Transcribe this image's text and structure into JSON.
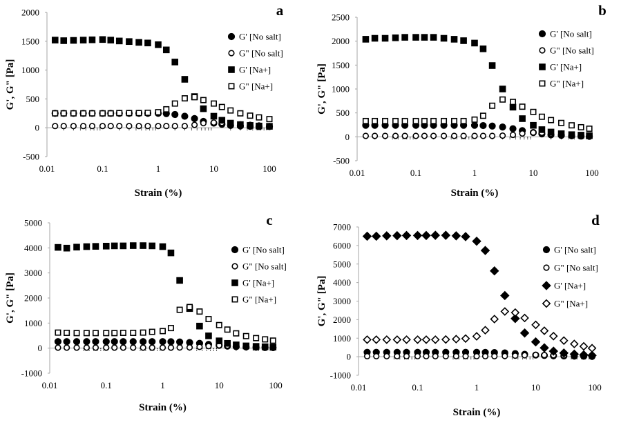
{
  "chart_data": [
    {
      "type": "scatter",
      "panel_label": "a",
      "xlabel": "Strain (%)",
      "ylabel": "G', G\" [Pa]",
      "xscale": "log",
      "xlim": [
        0.01,
        100
      ],
      "ylim": [
        -500,
        2000
      ],
      "xticks": [
        "0.01",
        "0.1",
        "1",
        "10",
        "100"
      ],
      "yticks": [
        "-500",
        "0",
        "500",
        "1000",
        "1500",
        "2000"
      ],
      "grid": false,
      "legend_position": "right",
      "x": [
        0.014,
        0.02,
        0.03,
        0.045,
        0.065,
        0.1,
        0.14,
        0.2,
        0.3,
        0.45,
        0.65,
        1.0,
        1.4,
        2.0,
        3.0,
        4.5,
        6.5,
        10,
        14,
        20,
        30,
        45,
        65,
        100
      ],
      "series": [
        {
          "name": "G' [No salt]",
          "marker": "filled-circle",
          "values": [
            250,
            250,
            250,
            250,
            250,
            250,
            250,
            250,
            250,
            250,
            250,
            250,
            245,
            230,
            200,
            160,
            110,
            80,
            60,
            40,
            30,
            25,
            20,
            20
          ]
        },
        {
          "name": "G\" [No salt]",
          "marker": "open-circle",
          "values": [
            30,
            30,
            30,
            30,
            30,
            30,
            30,
            30,
            30,
            30,
            30,
            30,
            30,
            30,
            30,
            50,
            80,
            90,
            85,
            70,
            60,
            50,
            40,
            30
          ]
        },
        {
          "name": "G' [Na+]",
          "marker": "filled-square",
          "values": [
            1520,
            1510,
            1515,
            1520,
            1525,
            1530,
            1520,
            1505,
            1495,
            1480,
            1470,
            1440,
            1350,
            1140,
            840,
            540,
            330,
            200,
            130,
            80,
            55,
            40,
            30,
            25
          ]
        },
        {
          "name": "G\" [Na+]",
          "marker": "open-square",
          "values": [
            250,
            250,
            250,
            250,
            250,
            250,
            250,
            255,
            255,
            255,
            260,
            270,
            320,
            420,
            510,
            530,
            480,
            420,
            360,
            300,
            250,
            210,
            180,
            150
          ]
        }
      ]
    },
    {
      "type": "scatter",
      "panel_label": "b",
      "xlabel": "Strain (%)",
      "ylabel": "G', G\" [Pa]",
      "xscale": "log",
      "xlim": [
        0.01,
        100
      ],
      "ylim": [
        -500,
        2500
      ],
      "xticks": [
        "0.01",
        "0.1",
        "1",
        "10",
        "100"
      ],
      "yticks": [
        "-500",
        "0",
        "500",
        "1000",
        "1500",
        "2000",
        "2500"
      ],
      "grid": false,
      "legend_position": "right",
      "x": [
        0.014,
        0.02,
        0.03,
        0.045,
        0.065,
        0.1,
        0.14,
        0.2,
        0.3,
        0.45,
        0.65,
        1.0,
        1.4,
        2.0,
        3.0,
        4.5,
        6.5,
        10,
        14,
        20,
        30,
        45,
        65,
        90
      ],
      "series": [
        {
          "name": "G' [No salt]",
          "marker": "filled-circle",
          "values": [
            240,
            240,
            240,
            240,
            240,
            240,
            240,
            240,
            240,
            240,
            240,
            240,
            235,
            225,
            205,
            170,
            130,
            90,
            60,
            40,
            30,
            20,
            15,
            10
          ]
        },
        {
          "name": "G\" [No salt]",
          "marker": "open-circle",
          "values": [
            20,
            20,
            20,
            20,
            20,
            20,
            20,
            20,
            20,
            20,
            20,
            20,
            20,
            20,
            25,
            40,
            70,
            90,
            85,
            70,
            55,
            45,
            35,
            25
          ]
        },
        {
          "name": "G' [Na+]",
          "marker": "filled-square",
          "values": [
            2040,
            2060,
            2060,
            2070,
            2080,
            2080,
            2080,
            2080,
            2060,
            2040,
            2010,
            1960,
            1840,
            1490,
            1000,
            620,
            380,
            240,
            150,
            100,
            65,
            45,
            35,
            25
          ]
        },
        {
          "name": "G\" [Na+]",
          "marker": "open-square",
          "values": [
            330,
            330,
            330,
            330,
            330,
            330,
            330,
            330,
            330,
            330,
            330,
            360,
            440,
            650,
            780,
            730,
            630,
            520,
            420,
            350,
            290,
            240,
            200,
            170
          ]
        }
      ]
    },
    {
      "type": "scatter",
      "panel_label": "c",
      "xlabel": "Strain (%)",
      "ylabel": "G', G\" [Pa]",
      "xscale": "log",
      "xlim": [
        0.01,
        100
      ],
      "ylim": [
        -1000,
        5000
      ],
      "xticks": [
        "0.01",
        "0.1",
        "1",
        "10",
        "100"
      ],
      "yticks": [
        "-1000",
        "0",
        "1000",
        "2000",
        "3000",
        "4000",
        "5000"
      ],
      "grid": false,
      "legend_position": "right",
      "x": [
        0.014,
        0.02,
        0.03,
        0.045,
        0.065,
        0.1,
        0.14,
        0.2,
        0.3,
        0.45,
        0.65,
        1.0,
        1.4,
        2.0,
        3.0,
        4.5,
        6.5,
        10,
        14,
        20,
        30,
        45,
        65,
        90
      ],
      "series": [
        {
          "name": "G' [No salt]",
          "marker": "filled-circle",
          "values": [
            260,
            260,
            260,
            260,
            260,
            260,
            260,
            260,
            260,
            260,
            260,
            260,
            255,
            245,
            225,
            190,
            150,
            110,
            80,
            60,
            45,
            35,
            25,
            20
          ]
        },
        {
          "name": "G\" [No salt]",
          "marker": "open-circle",
          "values": [
            20,
            20,
            20,
            20,
            20,
            20,
            20,
            20,
            20,
            20,
            20,
            20,
            20,
            25,
            30,
            50,
            80,
            110,
            100,
            85,
            70,
            55,
            45,
            35
          ]
        },
        {
          "name": "G' [Na+]",
          "marker": "filled-square",
          "values": [
            4020,
            3990,
            4030,
            4050,
            4060,
            4070,
            4080,
            4080,
            4090,
            4090,
            4080,
            4050,
            3800,
            2700,
            1580,
            880,
            490,
            290,
            190,
            130,
            90,
            70,
            55,
            40
          ]
        },
        {
          "name": "G\" [Na+]",
          "marker": "open-square",
          "values": [
            620,
            610,
            600,
            600,
            600,
            600,
            600,
            610,
            610,
            620,
            650,
            680,
            800,
            1530,
            1640,
            1460,
            1160,
            920,
            740,
            590,
            480,
            400,
            350,
            300
          ]
        }
      ]
    },
    {
      "type": "scatter",
      "panel_label": "d",
      "xlabel": "Strain (%)",
      "ylabel": "G', G\" [Pa]",
      "xscale": "log",
      "xlim": [
        0.01,
        100
      ],
      "ylim": [
        -1000,
        7000
      ],
      "xticks": [
        "0.01",
        "0.1",
        "1",
        "10",
        "100"
      ],
      "yticks": [
        "-1000",
        "0",
        "1000",
        "2000",
        "3000",
        "4000",
        "5000",
        "6000",
        "7000"
      ],
      "grid": false,
      "legend_position": "right",
      "x": [
        0.014,
        0.02,
        0.03,
        0.045,
        0.065,
        0.1,
        0.14,
        0.2,
        0.3,
        0.45,
        0.65,
        1.0,
        1.4,
        2.0,
        3.0,
        4.5,
        6.5,
        10,
        14,
        20,
        30,
        45,
        65,
        90
      ],
      "series": [
        {
          "name": "G' [No salt]",
          "marker": "filled-circle",
          "values": [
            240,
            240,
            240,
            240,
            240,
            240,
            240,
            240,
            240,
            240,
            240,
            240,
            235,
            225,
            205,
            170,
            130,
            90,
            70,
            50,
            40,
            30,
            25,
            20
          ]
        },
        {
          "name": "G\" [No salt]",
          "marker": "open-circle",
          "values": [
            30,
            30,
            30,
            30,
            30,
            30,
            30,
            30,
            30,
            30,
            30,
            30,
            30,
            30,
            35,
            55,
            80,
            100,
            90,
            80,
            65,
            55,
            45,
            35
          ]
        },
        {
          "name": "G' [Na+]",
          "marker": "filled-diamond",
          "values": [
            6500,
            6500,
            6520,
            6530,
            6540,
            6540,
            6540,
            6550,
            6550,
            6520,
            6480,
            6230,
            5730,
            4630,
            3300,
            2060,
            1280,
            800,
            480,
            300,
            200,
            140,
            100,
            70
          ]
        },
        {
          "name": "G\" [Na+]",
          "marker": "open-diamond",
          "values": [
            920,
            920,
            920,
            920,
            920,
            920,
            920,
            920,
            930,
            950,
            980,
            1100,
            1430,
            2030,
            2440,
            2380,
            2090,
            1720,
            1400,
            1110,
            870,
            690,
            560,
            460
          ]
        }
      ]
    }
  ]
}
